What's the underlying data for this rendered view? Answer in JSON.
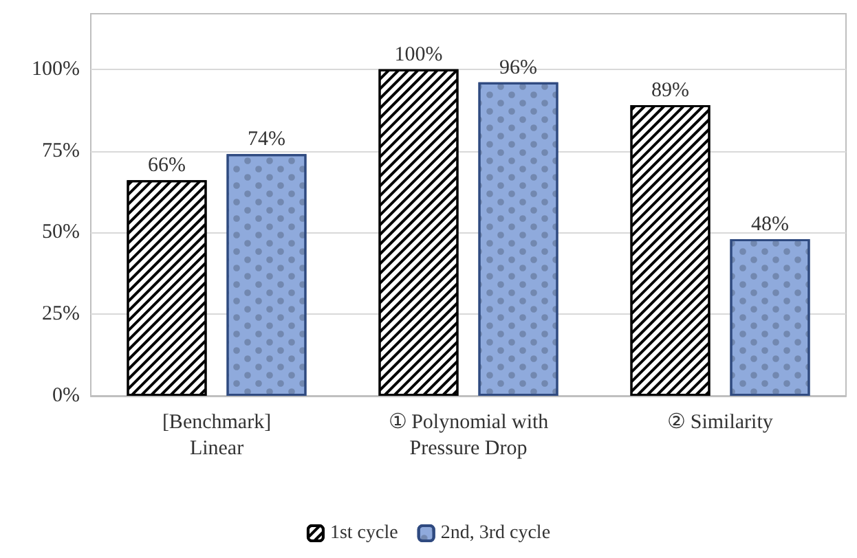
{
  "chart_data": {
    "type": "bar",
    "categories": [
      "[Benchmark]\nLinear",
      "① Polynomial with\nPressure Drop",
      "② Similarity"
    ],
    "series": [
      {
        "name": "1st cycle",
        "color": "#000000",
        "values": [
          66,
          100,
          89
        ],
        "value_labels": [
          "66%",
          "100%",
          "89%"
        ]
      },
      {
        "name": "2nd, 3rd cycle",
        "color": "#8faadc",
        "values": [
          74,
          96,
          48
        ],
        "value_labels": [
          "74%",
          "96%",
          "48%"
        ]
      }
    ],
    "ylim": [
      0,
      117
    ],
    "yticks": [
      {
        "value": 0,
        "label": "0%"
      },
      {
        "value": 25,
        "label": "25%"
      },
      {
        "value": 50,
        "label": "50%"
      },
      {
        "value": 75,
        "label": "75%"
      },
      {
        "value": 100,
        "label": "100%"
      }
    ],
    "grid": "y",
    "legend": "bottom"
  }
}
